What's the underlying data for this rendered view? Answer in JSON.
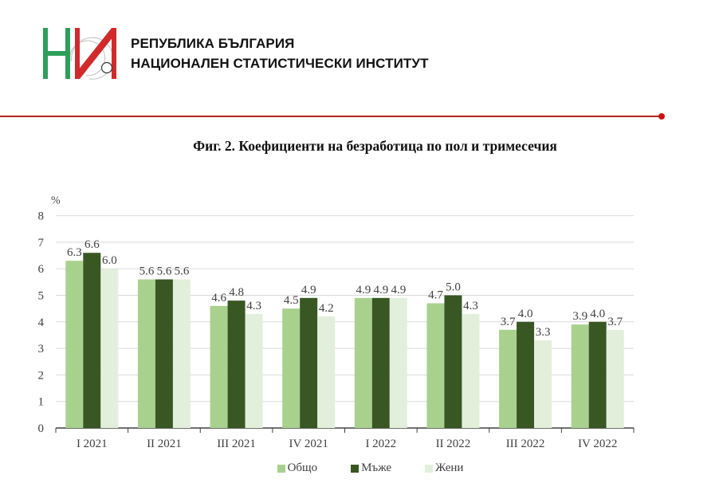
{
  "header": {
    "org_line1": "РЕПУБЛИКА БЪЛГАРИЯ",
    "org_line2": "НАЦИОНАЛЕН СТАТИСТИЧЕСКИ ИНСТИТУТ",
    "logo": "nsi-logo",
    "rule_color": "#b02020"
  },
  "colors": {
    "total": "#a9d18e",
    "men": "#385723",
    "women": "#e2efda"
  },
  "chart_data": {
    "type": "bar",
    "title": "Фиг. 2. Коефициенти на безработица по пол и тримесечия",
    "xlabel": "",
    "ylabel": "%",
    "ylim": [
      0,
      8
    ],
    "yticks": [
      0,
      1,
      2,
      3,
      4,
      5,
      6,
      7,
      8
    ],
    "grid": true,
    "legend_position": "bottom",
    "categories": [
      "I 2021",
      "II 2021",
      "III 2021",
      "IV 2021",
      "I 2022",
      "II 2022",
      "III 2022",
      "IV 2022"
    ],
    "series": [
      {
        "name": "Общо",
        "color": "#a9d18e",
        "values": [
          6.3,
          5.6,
          4.6,
          4.5,
          4.9,
          4.7,
          3.7,
          3.9
        ]
      },
      {
        "name": "Мъже",
        "color": "#385723",
        "values": [
          6.6,
          5.6,
          4.8,
          4.9,
          4.9,
          5.0,
          4.0,
          4.0
        ]
      },
      {
        "name": "Жени",
        "color": "#e2efda",
        "values": [
          6.0,
          5.6,
          4.3,
          4.2,
          4.9,
          4.3,
          3.3,
          3.7
        ]
      }
    ]
  },
  "legend": [
    {
      "label": "Общо"
    },
    {
      "label": "Мъже"
    },
    {
      "label": "Жени"
    }
  ]
}
